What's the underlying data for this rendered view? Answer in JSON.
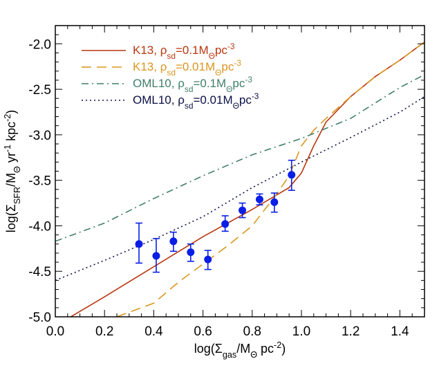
{
  "chart_data": {
    "type": "line",
    "xlabel": "log(Σgas/MΘ pc-2)",
    "ylabel": "log(ΣSFR/MΘ yr-1 kpc-2)",
    "xlim": [
      0.0,
      1.5
    ],
    "ylim": [
      -5.0,
      -1.8
    ],
    "x_ticks": [
      0.0,
      0.2,
      0.4,
      0.6,
      0.8,
      1.0,
      1.2,
      1.4
    ],
    "x_tick_labels": [
      "0.0",
      "0.2",
      "0.4",
      "0.6",
      "0.8",
      "1.0",
      "1.2",
      "1.4"
    ],
    "y_ticks": [
      -5.0,
      -4.5,
      -4.0,
      -3.5,
      -3.0,
      -2.5,
      -2.0
    ],
    "y_tick_labels": [
      "-5.0",
      "-4.5",
      "-4.0",
      "-3.5",
      "-3.0",
      "-2.5",
      "-2.0"
    ],
    "grid": false,
    "legend_position": "top-left",
    "series": [
      {
        "name": "K13, ρsd=0.1MΘpc-3",
        "color": "#b8360e",
        "style": "solid",
        "x": [
          0.0,
          0.2,
          0.4,
          0.6,
          0.8,
          0.95,
          1.0,
          1.05,
          1.1,
          1.2,
          1.3,
          1.4,
          1.5
        ],
        "y": [
          -5.1,
          -4.78,
          -4.45,
          -4.12,
          -3.82,
          -3.58,
          -3.42,
          -3.12,
          -2.86,
          -2.58,
          -2.36,
          -2.18,
          -1.98
        ]
      },
      {
        "name": "K13, ρsd=0.01MΘpc-3",
        "color": "#d9961f",
        "style": "dashed",
        "x": [
          0.25,
          0.4,
          0.5,
          0.6,
          0.7,
          0.8,
          0.9,
          0.95,
          1.0,
          1.05,
          1.1,
          1.2,
          1.3,
          1.4,
          1.5
        ],
        "y": [
          -5.0,
          -4.85,
          -4.62,
          -4.42,
          -4.22,
          -4.0,
          -3.65,
          -3.45,
          -3.12,
          -2.95,
          -2.82,
          -2.58,
          -2.36,
          -2.18,
          -1.98
        ]
      },
      {
        "name": "OML10, ρsd=0.1MΘpc-3",
        "color": "#3f7e6a",
        "style": "dashdot",
        "x": [
          0.0,
          0.2,
          0.4,
          0.6,
          0.8,
          1.0,
          1.2,
          1.4,
          1.5
        ],
        "y": [
          -4.17,
          -3.97,
          -3.7,
          -3.45,
          -3.22,
          -3.04,
          -2.82,
          -2.48,
          -2.34
        ]
      },
      {
        "name": "OML10, ρsd=0.01MΘpc-3",
        "color": "#0a0f45",
        "style": "dotted",
        "x": [
          0.0,
          0.2,
          0.4,
          0.6,
          0.8,
          1.0,
          1.2,
          1.4,
          1.5
        ],
        "y": [
          -4.6,
          -4.38,
          -4.15,
          -3.9,
          -3.58,
          -3.3,
          -3.03,
          -2.75,
          -2.58
        ]
      }
    ],
    "points": {
      "color": "#0a1ee6",
      "x": [
        0.34,
        0.41,
        0.48,
        0.55,
        0.62,
        0.69,
        0.76,
        0.83,
        0.89,
        0.96
      ],
      "y": [
        -4.2,
        -4.33,
        -4.17,
        -4.29,
        -4.37,
        -3.98,
        -3.83,
        -3.71,
        -3.74,
        -3.44
      ],
      "err_low": [
        0.21,
        0.18,
        0.11,
        0.1,
        0.11,
        0.08,
        0.08,
        0.06,
        0.11,
        0.17
      ],
      "err_high": [
        0.23,
        0.19,
        0.1,
        0.09,
        0.1,
        0.09,
        0.08,
        0.06,
        0.1,
        0.16
      ]
    }
  }
}
